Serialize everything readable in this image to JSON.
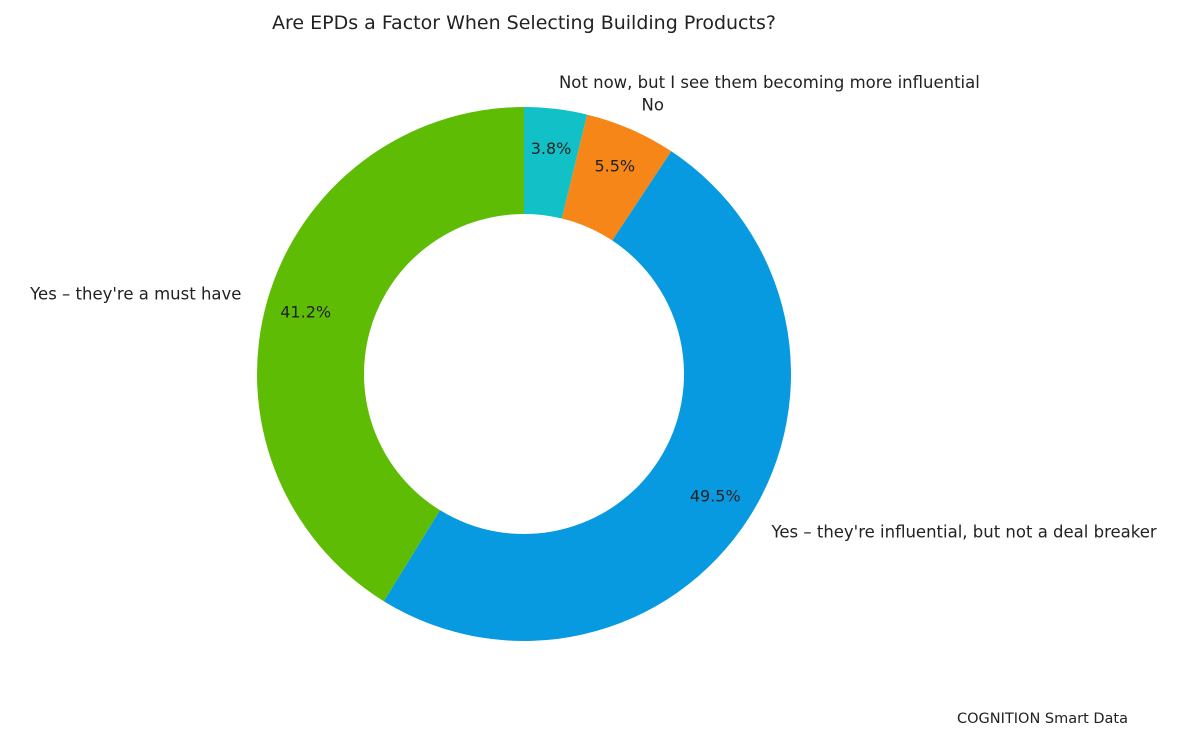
{
  "chart_data": {
    "type": "pie",
    "donut": true,
    "title": "Are EPDs a Factor When Selecting Building Products?",
    "start": "top",
    "direction": "clockwise",
    "slices": [
      {
        "label": "Not now, but I see them becoming more influential",
        "value": 3.8,
        "pct_label": "3.8%",
        "color": "#12c1c7"
      },
      {
        "label": "No",
        "value": 5.5,
        "pct_label": "5.5%",
        "color": "#f58617"
      },
      {
        "label": "Yes – they're influential, but not a deal breaker",
        "value": 49.5,
        "pct_label": "49.5%",
        "color": "#089ae0"
      },
      {
        "label": "Yes – they're a must have",
        "value": 41.2,
        "pct_label": "41.2%",
        "color": "#5fbc05"
      }
    ]
  },
  "footer": {
    "credit": "COGNITION Smart Data"
  }
}
